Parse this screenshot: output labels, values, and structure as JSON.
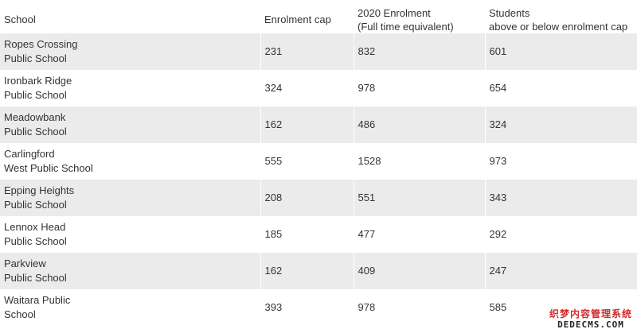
{
  "table": {
    "headers": {
      "school": "School",
      "cap": "Enrolment cap",
      "enrolment_line1": "2020 Enrolment",
      "enrolment_line2": "(Full time equivalent)",
      "diff_line1": "Students",
      "diff_line2": "above or below enrolment cap"
    },
    "rows": [
      {
        "school": "Ropes Crossing\nPublic School",
        "cap": "231",
        "enrolment": "832",
        "diff": "601"
      },
      {
        "school": "Ironbark Ridge\nPublic School",
        "cap": "324",
        "enrolment": "978",
        "diff": "654"
      },
      {
        "school": "Meadowbank\nPublic School",
        "cap": "162",
        "enrolment": "486",
        "diff": "324"
      },
      {
        "school": "Carlingford\nWest Public School",
        "cap": "555",
        "enrolment": "1528",
        "diff": "973"
      },
      {
        "school": "Epping Heights\nPublic School",
        "cap": "208",
        "enrolment": "551",
        "diff": "343"
      },
      {
        "school": "Lennox Head\nPublic School",
        "cap": "185",
        "enrolment": "477",
        "diff": "292"
      },
      {
        "school": "Parkview\nPublic School",
        "cap": "162",
        "enrolment": "409",
        "diff": "247"
      },
      {
        "school": "Waitara Public\nSchool",
        "cap": "393",
        "enrolment": "978",
        "diff": "585"
      }
    ]
  },
  "watermark": {
    "line1": "织梦内容管理系统",
    "line2": "DEDECMS.COM"
  }
}
